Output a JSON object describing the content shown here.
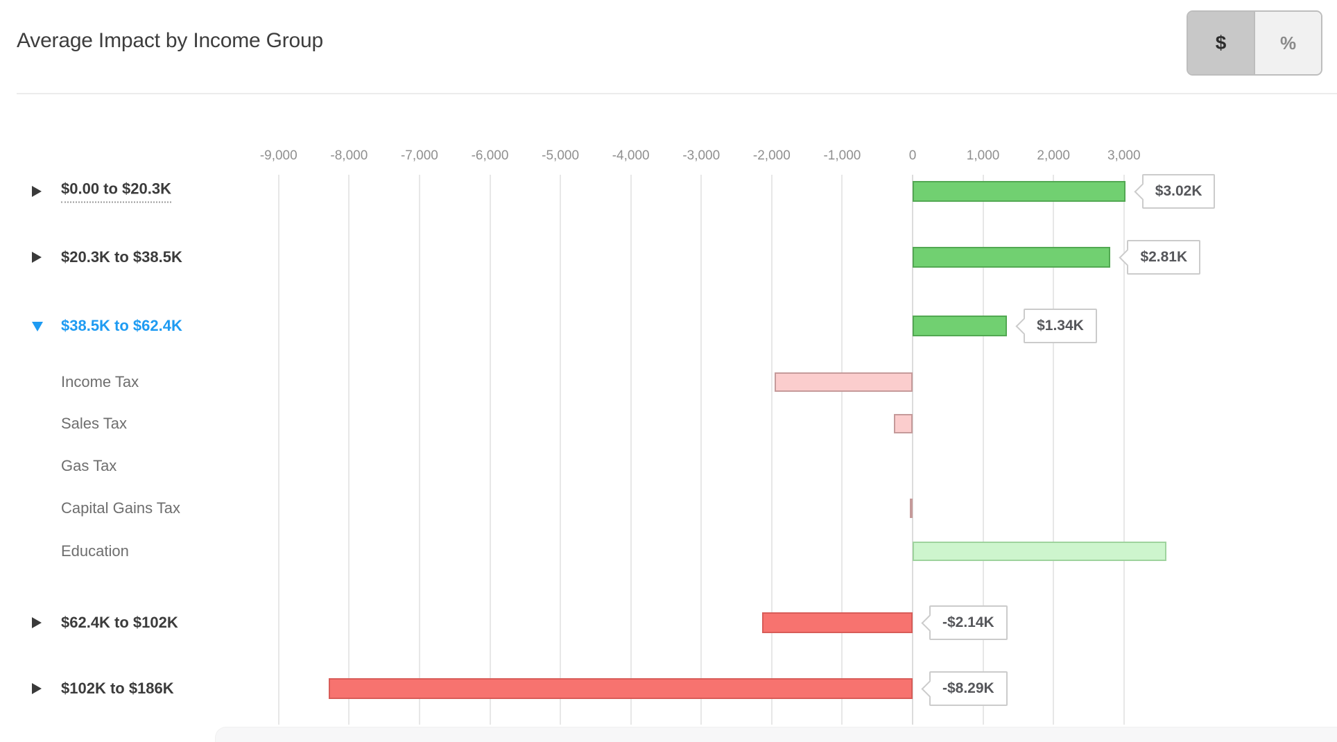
{
  "header": {
    "title": "Average Impact by Income Group"
  },
  "toggle": {
    "dollar_label": "$",
    "percent_label": "%",
    "selected": "$"
  },
  "colors": {
    "green": {
      "fill": "#71d071",
      "stroke": "#52a852"
    },
    "lightgreen": {
      "fill": "#cdf5cd",
      "stroke": "#9ed39d"
    },
    "pink": {
      "fill": "#fbcdcd",
      "stroke": "#c59a9a"
    },
    "red": {
      "fill": "#f7736f",
      "stroke": "#d85c58"
    },
    "expanded_row_accent": "#1e9bf2",
    "grid": "#e7e7e7",
    "axis_text": "#8f8f8f"
  },
  "chart_data": {
    "type": "bar",
    "orientation": "horizontal",
    "title": "Average Impact by Income Group",
    "unit": "dollars",
    "x_axis": {
      "range": [
        -9000,
        3000
      ],
      "ticks": [
        -9000,
        -8000,
        -7000,
        -6000,
        -5000,
        -4000,
        -3000,
        -2000,
        -1000,
        0,
        1000,
        2000,
        3000
      ],
      "tick_labels": [
        "-9,000",
        "-8,000",
        "-7,000",
        "-6,000",
        "-5,000",
        "-4,000",
        "-3,000",
        "-2,000",
        "-1,000",
        "0",
        "1,000",
        "2,000",
        "3,000"
      ],
      "grid": true
    },
    "rows": [
      {
        "label": "$0.00 to $20.3K",
        "level": "group",
        "state": "collapsed",
        "underlined": true,
        "value": 3020,
        "value_label": "$3.02K",
        "color": "green"
      },
      {
        "label": "$20.3K to $38.5K",
        "level": "group",
        "state": "collapsed",
        "underlined": false,
        "value": 2810,
        "value_label": "$2.81K",
        "color": "green"
      },
      {
        "label": "$38.5K to $62.4K",
        "level": "group",
        "state": "expanded",
        "underlined": false,
        "value": 1340,
        "value_label": "$1.34K",
        "color": "green"
      },
      {
        "label": "Income Tax",
        "level": "sub",
        "value": -1960,
        "value_label": null,
        "color": "pink"
      },
      {
        "label": "Sales Tax",
        "level": "sub",
        "value": -270,
        "value_label": null,
        "color": "pink"
      },
      {
        "label": "Gas Tax",
        "level": "sub",
        "value": 0,
        "value_label": null,
        "color": "pink"
      },
      {
        "label": "Capital Gains Tax",
        "level": "sub",
        "value": -40,
        "value_label": null,
        "color": "pink"
      },
      {
        "label": "Education",
        "level": "sub",
        "value": 3600,
        "value_label": null,
        "color": "lightgreen"
      },
      {
        "label": "$62.4K to $102K",
        "level": "group",
        "state": "collapsed",
        "underlined": false,
        "value": -2140,
        "value_label": "-$2.14K",
        "color": "red"
      },
      {
        "label": "$102K to $186K",
        "level": "group",
        "state": "collapsed",
        "underlined": false,
        "value": -8290,
        "value_label": "-$8.29K",
        "color": "red"
      }
    ]
  }
}
